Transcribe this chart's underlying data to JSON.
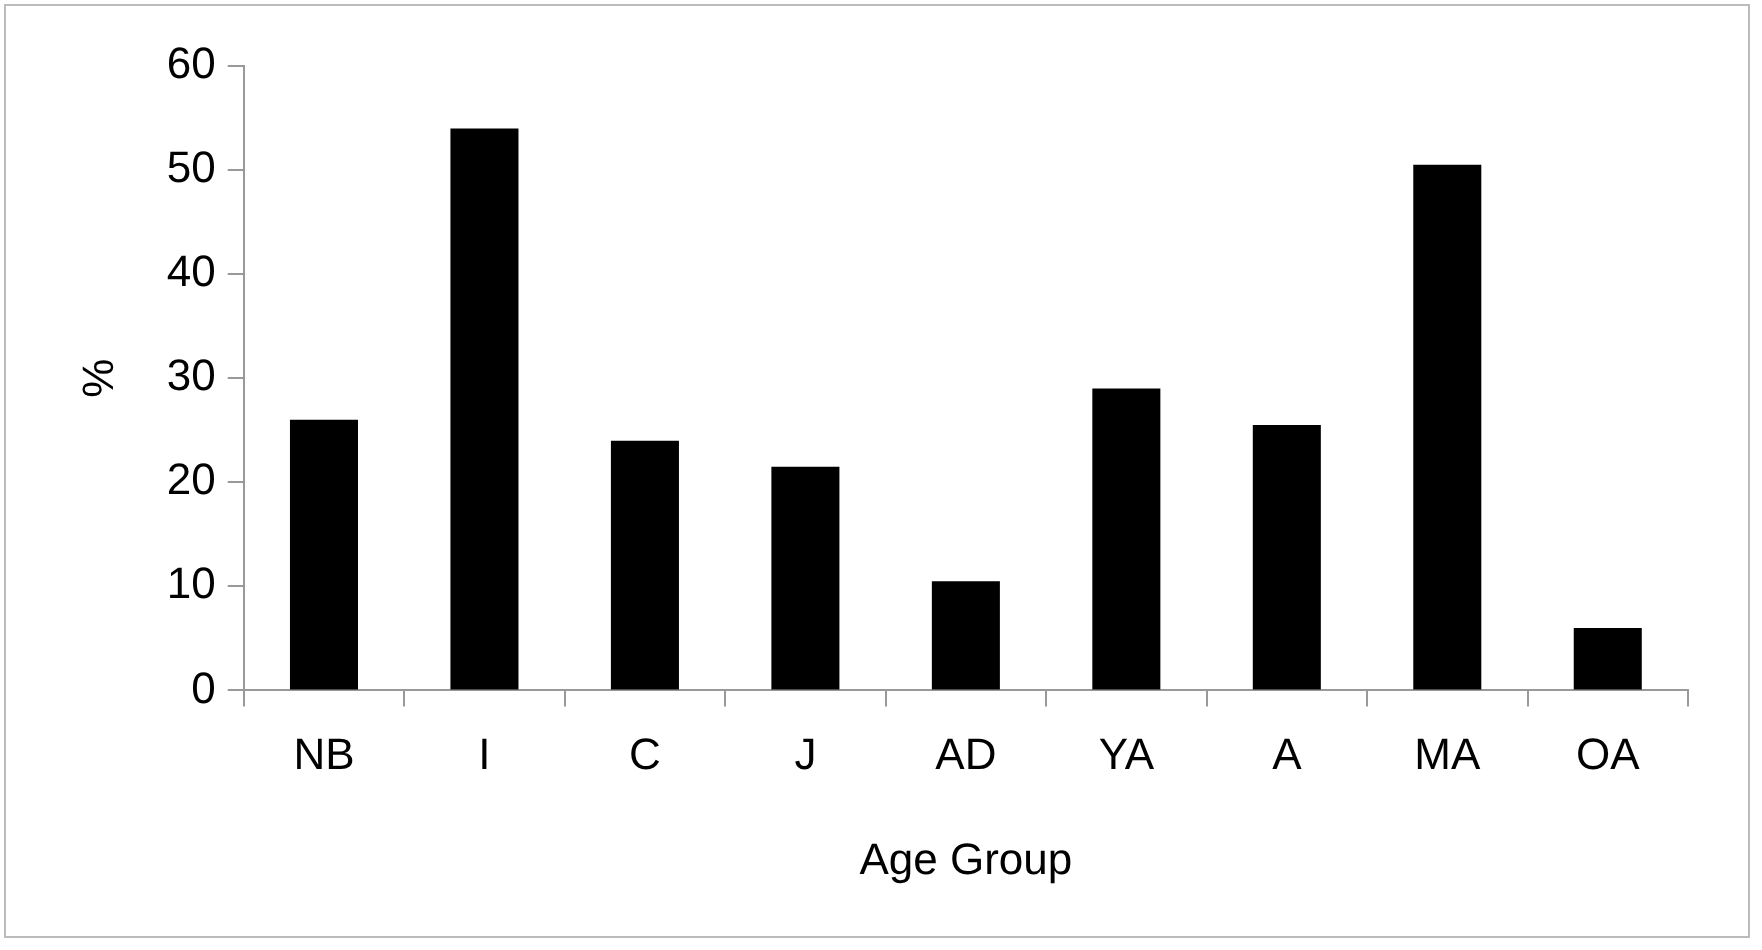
{
  "chart_data": {
    "type": "bar",
    "xlabel": "Age Group",
    "ylabel": "%",
    "categories": [
      "NB",
      "I",
      "C",
      "J",
      "AD",
      "YA",
      "A",
      "MA",
      "OA"
    ],
    "values": [
      26,
      54,
      24,
      21.5,
      10.5,
      29,
      25.5,
      50.5,
      6
    ],
    "color": "#000000",
    "ylim": [
      0,
      60
    ],
    "yticks": [
      0,
      10,
      20,
      30,
      40,
      50,
      60
    ],
    "grid": false,
    "legend": false
  }
}
